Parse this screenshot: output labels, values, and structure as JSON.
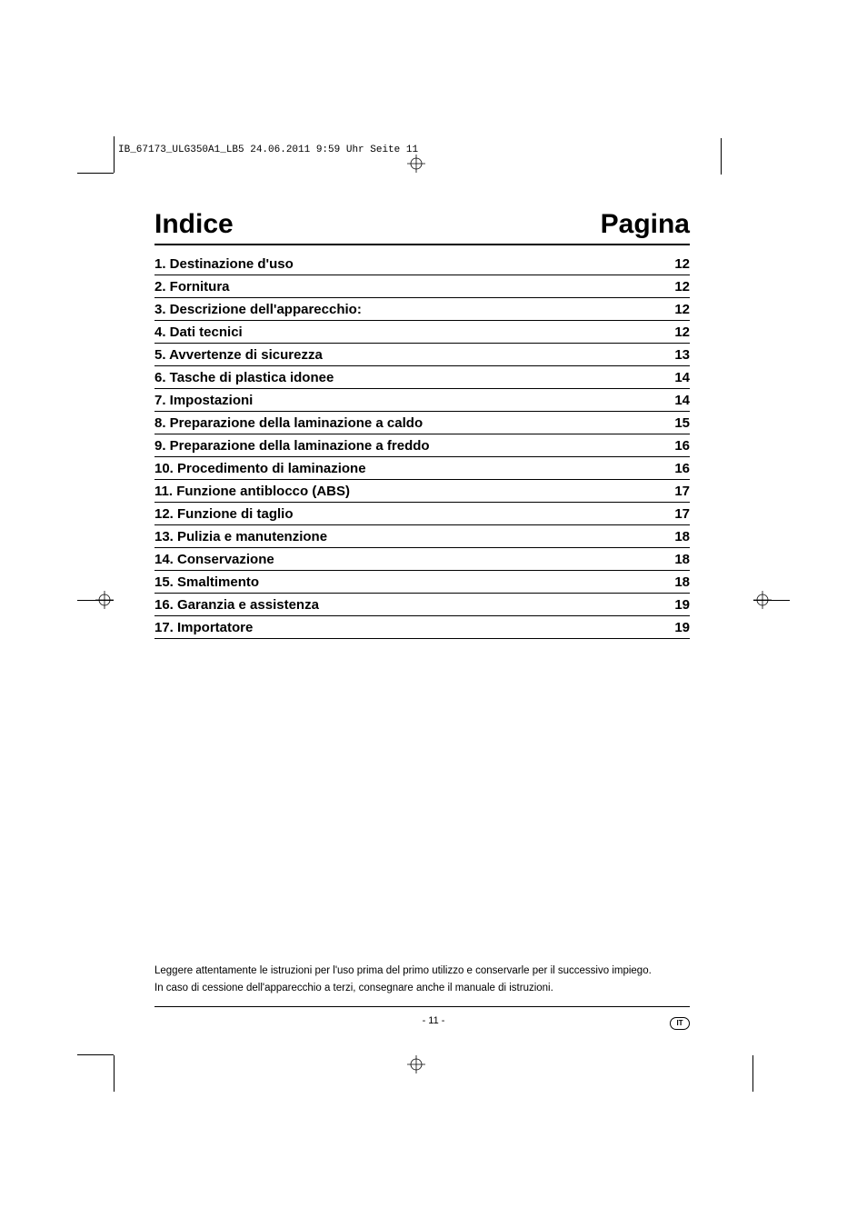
{
  "header": {
    "text": "IB_67173_ULG350A1_LB5  24.06.2011  9:59 Uhr  Seite 11"
  },
  "title": {
    "left": "Indice",
    "right": "Pagina"
  },
  "toc": [
    {
      "title": "1. Destinazione d'uso",
      "page": "12"
    },
    {
      "title": "2. Fornitura",
      "page": "12"
    },
    {
      "title": "3. Descrizione dell'apparecchio:",
      "page": "12"
    },
    {
      "title": "4. Dati tecnici",
      "page": "12"
    },
    {
      "title": "5. Avvertenze di sicurezza",
      "page": "13"
    },
    {
      "title": "6. Tasche di plastica idonee",
      "page": "14"
    },
    {
      "title": "7. Impostazioni",
      "page": "14"
    },
    {
      "title": "8. Preparazione della laminazione a caldo",
      "page": "15"
    },
    {
      "title": "9. Preparazione della laminazione a freddo",
      "page": "16"
    },
    {
      "title": "10. Procedimento di laminazione",
      "page": "16"
    },
    {
      "title": "11. Funzione antiblocco (ABS)",
      "page": "17"
    },
    {
      "title": "12. Funzione di taglio",
      "page": "17"
    },
    {
      "title": "13. Pulizia e manutenzione",
      "page": "18"
    },
    {
      "title": "14. Conservazione",
      "page": "18"
    },
    {
      "title": "15. Smaltimento",
      "page": "18"
    },
    {
      "title": "16. Garanzia e assistenza",
      "page": "19"
    },
    {
      "title": "17. Importatore",
      "page": "19"
    }
  ],
  "footer": {
    "line1": "Leggere attentamente le istruzioni per l'uso prima del primo utilizzo e conservarle per il successivo impiego.",
    "line2": "In caso di cessione dell'apparecchio a terzi, consegnare anche il manuale di istruzioni.",
    "pageNumber": "- 11 -",
    "langBadge": "IT"
  },
  "colors": {
    "text": "#000000",
    "background": "#ffffff"
  }
}
